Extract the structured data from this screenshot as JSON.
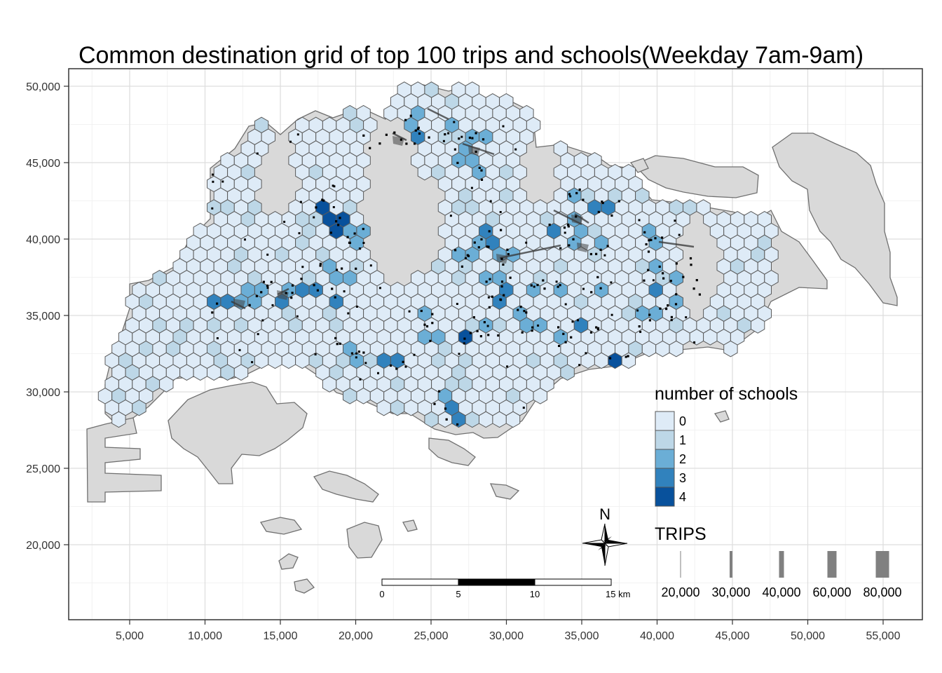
{
  "title": "Common destination grid of top 100 trips and schools(Weekday 7am-9am)",
  "axes": {
    "x_ticks": [
      "5,000",
      "10,000",
      "15,000",
      "20,000",
      "25,000",
      "30,000",
      "35,000",
      "40,000",
      "45,000",
      "50,000",
      "55,000"
    ],
    "y_ticks": [
      "50,000",
      "45,000",
      "40,000",
      "35,000",
      "30,000",
      "25,000",
      "20,000"
    ],
    "x_tick_values": [
      5000,
      10000,
      15000,
      20000,
      25000,
      30000,
      35000,
      40000,
      45000,
      50000,
      55000
    ],
    "y_tick_values": [
      50000,
      45000,
      40000,
      35000,
      30000,
      25000,
      20000
    ],
    "xlim": [
      1000,
      57000
    ],
    "ylim": [
      15000,
      51000
    ],
    "grid": true
  },
  "colors": {
    "land": "#d9d9d9",
    "land_stroke": "#707070",
    "hex_stroke": "#5a5a5a",
    "grid": "#dddddd",
    "school_fill": [
      "#deebf7",
      "#bdd7e7",
      "#6baed6",
      "#3182bd",
      "#08519c"
    ]
  },
  "legend_schools": {
    "title": "number of schools",
    "items": [
      {
        "label": "0",
        "color": "#deebf7"
      },
      {
        "label": "1",
        "color": "#bdd7e7"
      },
      {
        "label": "2",
        "color": "#6baed6"
      },
      {
        "label": "3",
        "color": "#3182bd"
      },
      {
        "label": "4",
        "color": "#08519c"
      }
    ]
  },
  "legend_trips": {
    "title": "TRIPS",
    "items": [
      {
        "label": "20,000",
        "value": 20000
      },
      {
        "label": "30,000",
        "value": 30000
      },
      {
        "label": "40,000",
        "value": 40000
      },
      {
        "label": "60,000",
        "value": 60000
      },
      {
        "label": "80,000",
        "value": 80000
      }
    ]
  },
  "north_arrow": {
    "label": "N"
  },
  "scale_bar": {
    "labels": [
      "0",
      "5",
      "10",
      "15 km"
    ]
  }
}
